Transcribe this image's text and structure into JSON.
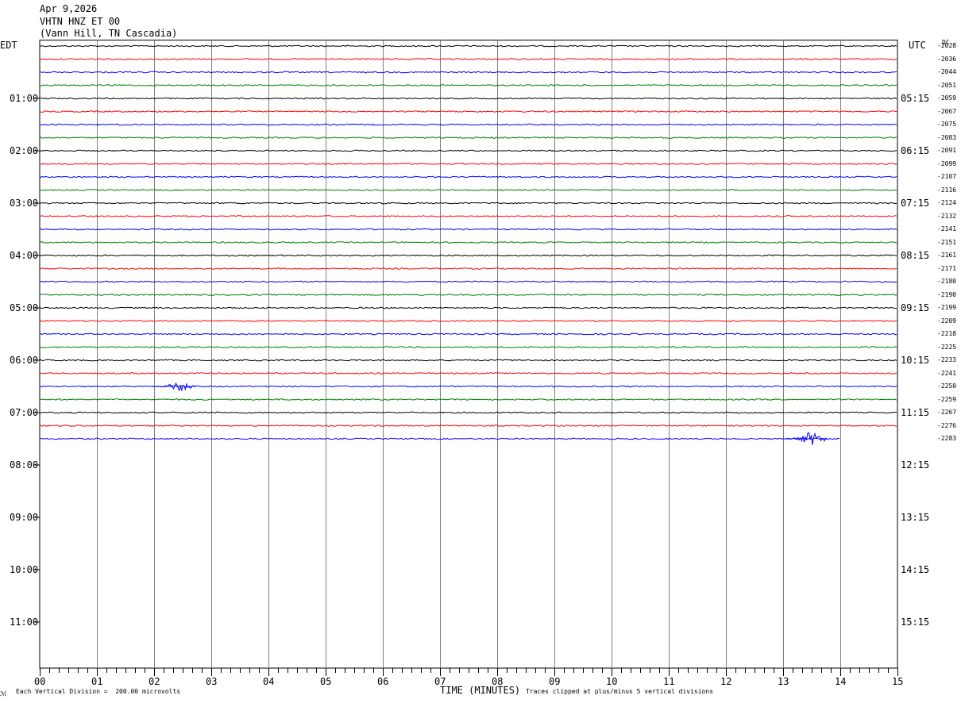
{
  "header": {
    "date": "Apr 9,2026",
    "station": "VHTN HNZ ET 00",
    "location": "(Vann Hill, TN Cascadia)"
  },
  "left_axis_label": "EDT",
  "right_axis_label": "UTC",
  "dc_label": "DC",
  "footer": {
    "vertical_division": "Each Vertical Division =  200.00 microvolts",
    "time_label": "TIME (MINUTES)",
    "clip_note": "Traces clipped at plus/minus 5 vertical divisions",
    "corner_mark": "ℳ"
  },
  "colors": {
    "trace_cycle": [
      "#000000",
      "#ff0000",
      "#0000ff",
      "#008000"
    ],
    "grid": "#808080",
    "background": "#ffffff"
  },
  "chart_data": {
    "type": "line",
    "title": "VHTN HNZ ET 00",
    "xlabel": "TIME (MINUTES)",
    "xlim": [
      0,
      15
    ],
    "x_ticks": [
      "00",
      "01",
      "02",
      "03",
      "04",
      "05",
      "06",
      "07",
      "08",
      "09",
      "10",
      "11",
      "12",
      "13",
      "14",
      "15"
    ],
    "left_time_labels": [
      "01:00",
      "02:00",
      "03:00",
      "04:00",
      "05:00",
      "06:00",
      "07:00",
      "08:00",
      "09:00",
      "10:00",
      "11:00"
    ],
    "right_time_labels": [
      "05:15",
      "06:15",
      "07:15",
      "08:15",
      "09:15",
      "10:15",
      "11:15",
      "12:15",
      "13:15",
      "14:15",
      "15:15"
    ],
    "rows_per_hour": 4,
    "total_rows": 48,
    "dc_offsets": [
      "-2028",
      "-2036",
      "-2044",
      "-2051",
      "-2059",
      "-2067",
      "-2075",
      "-2083",
      "-2091",
      "-2099",
      "-2107",
      "-2116",
      "-2124",
      "-2132",
      "-2141",
      "-2151",
      "-2161",
      "-2171",
      "-2180",
      "-2190",
      "-2199",
      "-2209",
      "-2218",
      "-2225",
      "-2233",
      "-2241",
      "-2250",
      "-2259",
      "-2267",
      "-2276",
      "-2283"
    ],
    "trace_count": 31,
    "last_trace_end_minute": 14.0,
    "events": [
      {
        "row": 26,
        "minute": 2.45,
        "amplitude": 6
      },
      {
        "row": 30,
        "minute": 13.5,
        "amplitude": 9
      }
    ]
  }
}
